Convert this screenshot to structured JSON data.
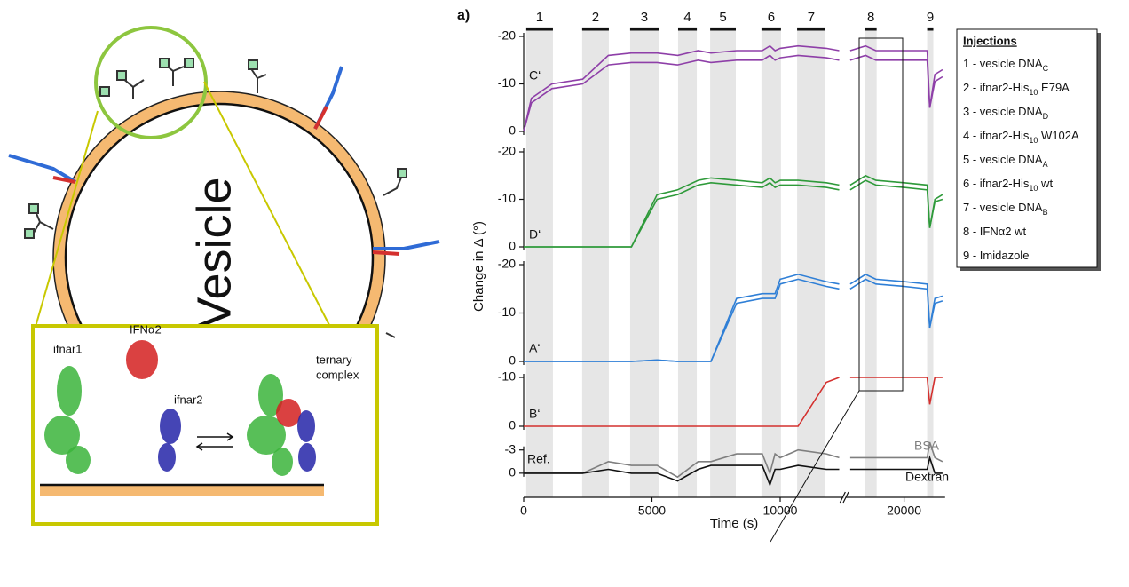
{
  "diagram": {
    "vesicle": "Vesicle",
    "ifnar1": "ifnar1",
    "ifna2": "IFNα2",
    "ifnar2": "ifnar2",
    "complex": [
      "ternary",
      "complex"
    ]
  },
  "chart_data": {
    "type": "line",
    "figure_label": "a)",
    "xlabel": "Time (s)",
    "ylabel": "Change in Δ (°)",
    "xlim": [
      0,
      21600
    ],
    "xticks": [
      0,
      5000,
      10000,
      20000
    ],
    "xbreak": [
      12400,
      17800
    ],
    "injections": [
      {
        "label": "1",
        "start": 100,
        "end": 1140
      },
      {
        "label": "2",
        "start": 2280,
        "end": 3320
      },
      {
        "label": "3",
        "start": 4150,
        "end": 5260
      },
      {
        "label": "4",
        "start": 6020,
        "end": 6750
      },
      {
        "label": "5",
        "start": 7270,
        "end": 8270
      },
      {
        "label": "6",
        "start": 9270,
        "end": 10030
      },
      {
        "label": "7",
        "start": 10660,
        "end": 11760
      },
      {
        "label": "8",
        "start": 18480,
        "end": 18930
      },
      {
        "label": "9",
        "start": 20900,
        "end": 21140
      }
    ],
    "legend": {
      "title": "Injections",
      "items": [
        {
          "text": "1 - vesicle DNA",
          "sub": "C"
        },
        {
          "text": "2 - ifnar2-His",
          "sub": "10",
          "suffix": " E79A"
        },
        {
          "text": "3 - vesicle DNA",
          "sub": "D"
        },
        {
          "text": "4 - ifnar2-His",
          "sub": "10",
          "suffix": " W102A"
        },
        {
          "text": "5 - vesicle DNA",
          "sub": "A"
        },
        {
          "text": "6 - ifnar2-His",
          "sub": "10",
          "suffix": " wt"
        },
        {
          "text": "7 - vesicle DNA",
          "sub": "B"
        },
        {
          "text": "8 - IFNα2 wt"
        },
        {
          "text": "9 - Imidazole"
        }
      ]
    },
    "x": [
      0,
      300,
      1100,
      2300,
      3300,
      4200,
      5200,
      6000,
      6800,
      7300,
      8300,
      9300,
      9600,
      9800,
      10000,
      10700,
      11800,
      12300,
      17900,
      18500,
      18900,
      20000,
      20900,
      21000,
      21200,
      21500
    ],
    "panels": [
      {
        "label": "C‘",
        "ylim": [
          0,
          -20
        ],
        "yticks": [
          0,
          -10,
          -20
        ],
        "series": [
          {
            "color": "#8e3fa8",
            "values": [
              0,
              -7,
              -10,
              -11,
              -16,
              -16.5,
              -16.5,
              -16,
              -17,
              -16.5,
              -17,
              -17,
              -18,
              -17,
              -17.5,
              -18,
              -17.5,
              -17,
              -17,
              -18,
              -17,
              -17,
              -17,
              -5,
              -12,
              -13
            ]
          },
          {
            "color": "#8e3fa8",
            "values": [
              0,
              -6,
              -9,
              -10,
              -14,
              -14.5,
              -14.5,
              -14,
              -15,
              -14.5,
              -15,
              -15,
              -16,
              -15,
              -15.5,
              -16,
              -15.5,
              -15,
              -15,
              -16,
              -15,
              -15,
              -15,
              -5,
              -10.5,
              -11.5
            ]
          }
        ]
      },
      {
        "label": "D‘",
        "ylim": [
          0,
          -20
        ],
        "yticks": [
          0,
          -10,
          -20
        ],
        "series": [
          {
            "color": "#2e9a3a",
            "values": [
              0,
              0,
              0,
              0,
              0,
              0,
              -11,
              -12,
              -14,
              -14.5,
              -14,
              -13.5,
              -14.5,
              -13.5,
              -14,
              -14,
              -13.5,
              -13,
              -13,
              -15,
              -14,
              -13.5,
              -13,
              -4,
              -10,
              -11
            ]
          },
          {
            "color": "#2e9a3a",
            "values": [
              0,
              0,
              0,
              0,
              0,
              0,
              -10,
              -11,
              -13,
              -13.5,
              -13,
              -12.5,
              -13.5,
              -12.5,
              -13,
              -13,
              -12.5,
              -12,
              -12,
              -14,
              -13,
              -12.5,
              -12,
              -4,
              -9.5,
              -10
            ]
          }
        ]
      },
      {
        "label": "A‘",
        "ylim": [
          0,
          -20
        ],
        "yticks": [
          0,
          -10,
          -20
        ],
        "series": [
          {
            "color": "#2f7fd6",
            "values": [
              0,
              0,
              0,
              0,
              0,
              0,
              -0.3,
              0,
              0,
              0,
              -13,
              -14,
              -14,
              -14,
              -17,
              -18,
              -16.5,
              -16,
              -16,
              -18,
              -17,
              -16.5,
              -16,
              -7,
              -13,
              -13.5
            ]
          },
          {
            "color": "#2f7fd6",
            "values": [
              0,
              0,
              0,
              0,
              0,
              0,
              -0.3,
              0,
              0,
              0,
              -12,
              -13,
              -13,
              -13,
              -16,
              -17,
              -15.5,
              -15,
              -15,
              -17,
              -16,
              -15.5,
              -15,
              -7,
              -12,
              -12.5
            ]
          }
        ]
      },
      {
        "label": "B‘",
        "ylim": [
          0,
          -10
        ],
        "yticks": [
          0,
          -10
        ],
        "series": [
          {
            "color": "#d4302e",
            "values": [
              0,
              0,
              0,
              0,
              0,
              0,
              0,
              0,
              0,
              0,
              0,
              0,
              0,
              0,
              0,
              0,
              -9,
              -10,
              -10,
              -10,
              -10,
              -10,
              -10,
              -4.5,
              -10,
              -10
            ]
          }
        ]
      },
      {
        "label": "Ref.",
        "ylim": [
          3,
          -4
        ],
        "yticks": [
          0,
          -3
        ],
        "series": [
          {
            "name": "BSA",
            "color": "#7f7f7f",
            "values": [
              0,
              0,
              0,
              0,
              -1.5,
              -1,
              -1,
              0.5,
              -1.5,
              -1.5,
              -2.5,
              -2.5,
              0,
              -2.5,
              -2,
              -3,
              -2.5,
              -2,
              -2,
              -2,
              -2,
              -2,
              -2,
              -4,
              -2,
              -1.5
            ]
          },
          {
            "name": "Dextran",
            "color": "#111111",
            "values": [
              0,
              0,
              0,
              0,
              -0.5,
              0,
              0,
              1,
              -0.5,
              -1,
              -1,
              -1,
              1.5,
              -0.5,
              -0.5,
              -1,
              -0.5,
              -0.5,
              -0.5,
              -0.5,
              -0.5,
              -0.5,
              -0.5,
              -2,
              0,
              0
            ]
          }
        ]
      }
    ]
  }
}
